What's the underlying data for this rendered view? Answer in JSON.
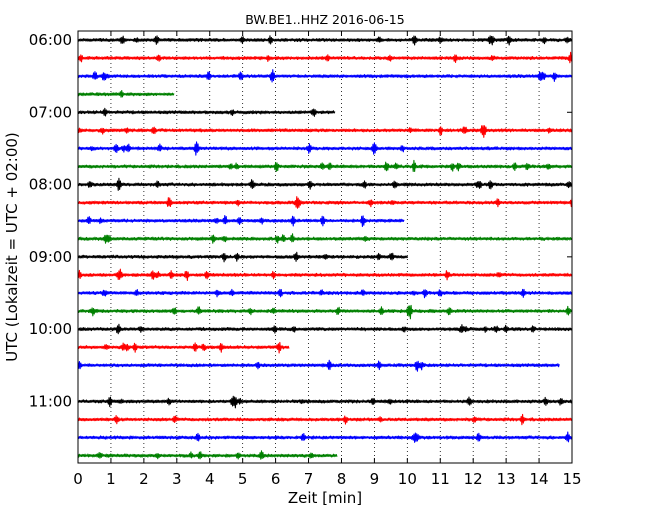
{
  "chart_data": {
    "type": "line",
    "title": "BW.BE1..HHZ 2016-06-15",
    "xlabel": "Zeit  [min]",
    "ylabel": "UTC (Lokalzeit = UTC + 02:00)",
    "xlim": [
      0,
      15
    ],
    "x_ticks": [
      "0",
      "1",
      "2",
      "3",
      "4",
      "5",
      "6",
      "7",
      "8",
      "9",
      "10",
      "11",
      "12",
      "13",
      "14",
      "15"
    ],
    "y_ticks": [
      "06:00",
      "07:00",
      "08:00",
      "09:00",
      "10:00",
      "11:00"
    ],
    "grid": "vertical dotted",
    "colors": [
      "#000000",
      "#ff0000",
      "#0000ff",
      "#008000"
    ],
    "trace_count": 24,
    "trace_interval_min": 15,
    "start_time": "06:00",
    "events": [
      {
        "trace": 3,
        "t": 3.0,
        "amp": 0.75
      },
      {
        "trace": 3,
        "t": 13.9,
        "amp": 1.1
      },
      {
        "trace": 4,
        "t": 7.9,
        "amp": 0.9
      },
      {
        "trace": 17,
        "t": 6.5,
        "amp": 1.2
      },
      {
        "trace": 18,
        "t": 14.7,
        "amp": 1.0
      },
      {
        "trace": 19,
        "t": 0.1,
        "amp": 0.45
      },
      {
        "trace": 19,
        "t": 1.45,
        "amp": 0.9
      },
      {
        "trace": 23,
        "t": 7.95,
        "amp": 0.5
      },
      {
        "trace": 10,
        "t": 10.0,
        "amp": 0.35
      },
      {
        "trace": 12,
        "t": 10.1,
        "amp": 0.35
      }
    ]
  }
}
